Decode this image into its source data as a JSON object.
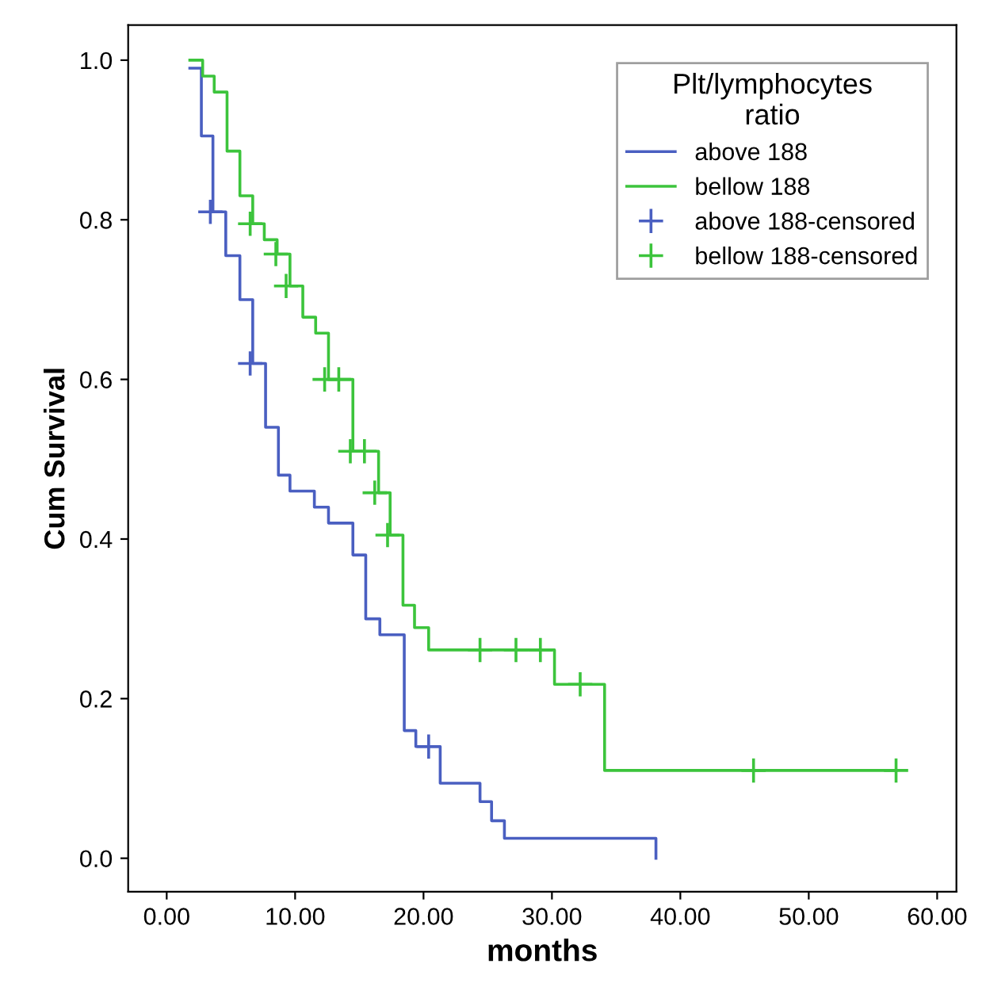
{
  "chart_data": {
    "type": "step",
    "xlabel": "months",
    "ylabel": "Cum Survival",
    "legend_title": "Plt/lymphocytes ratio",
    "legend": "top right",
    "grid": false,
    "xlim": [
      -3,
      61.5
    ],
    "ylim": [
      -0.042,
      1.044
    ],
    "xticks": [
      {
        "value": 0,
        "label": "0.00"
      },
      {
        "value": 10,
        "label": "10.00"
      },
      {
        "value": 20,
        "label": "20.00"
      },
      {
        "value": 30,
        "label": "30.00"
      },
      {
        "value": 40,
        "label": "40.00"
      },
      {
        "value": 50,
        "label": "50.00"
      },
      {
        "value": 60,
        "label": "60.00"
      }
    ],
    "yticks": [
      {
        "value": 0,
        "label": "0.0"
      },
      {
        "value": 0.2,
        "label": "0.2"
      },
      {
        "value": 0.4,
        "label": "0.4"
      },
      {
        "value": 0.6,
        "label": "0.6"
      },
      {
        "value": 0.8,
        "label": "0.8"
      },
      {
        "value": 1.0,
        "label": "1.0"
      }
    ],
    "series": [
      {
        "name": "above 188",
        "color": "#4a5fc1",
        "marker": "none",
        "line_style": "solid",
        "x": [
          1.8,
          2.7,
          3.6,
          4.6,
          5.7,
          6.7,
          7.7,
          8.7,
          9.6,
          11.5,
          12.6,
          14.5,
          15.5,
          16.6,
          18.5,
          19.4,
          21.3,
          24.4,
          25.3,
          26.3,
          38.1
        ],
        "values": [
          0.99,
          0.905,
          0.81,
          0.755,
          0.7,
          0.62,
          0.54,
          0.48,
          0.46,
          0.44,
          0.42,
          0.38,
          0.3,
          0.28,
          0.16,
          0.14,
          0.094,
          0.071,
          0.047,
          0.025,
          0.0
        ]
      },
      {
        "name": "bellow 188",
        "color": "#3cc43c",
        "marker": "none",
        "line_style": "solid",
        "x": [
          1.8,
          2.8,
          3.7,
          4.7,
          5.7,
          6.7,
          7.6,
          8.6,
          9.6,
          10.6,
          11.6,
          12.6,
          14.5,
          16.5,
          17.4,
          18.4,
          19.3,
          20.4,
          30.2,
          34.1,
          56.8
        ],
        "values": [
          1.0,
          0.98,
          0.96,
          0.886,
          0.83,
          0.795,
          0.775,
          0.757,
          0.717,
          0.678,
          0.658,
          0.6,
          0.51,
          0.458,
          0.405,
          0.317,
          0.289,
          0.261,
          0.218,
          0.11,
          0.11
        ]
      },
      {
        "name": "above 188-censored",
        "type": "scatter",
        "color": "#4a5fc1",
        "marker": "cross",
        "x": [
          3.4,
          6.5,
          20.4
        ],
        "values": [
          0.81,
          0.62,
          0.14
        ]
      },
      {
        "name": "bellow 188-censored",
        "type": "scatter",
        "color": "#3cc43c",
        "marker": "cross",
        "x": [
          6.5,
          8.5,
          9.3,
          12.3,
          13.4,
          14.3,
          15.4,
          16.2,
          17.2,
          24.4,
          27.2,
          29.1,
          32.2,
          45.7,
          56.8
        ],
        "values": [
          0.795,
          0.757,
          0.717,
          0.6,
          0.6,
          0.51,
          0.51,
          0.458,
          0.405,
          0.261,
          0.261,
          0.261,
          0.218,
          0.11,
          0.11
        ]
      }
    ]
  }
}
